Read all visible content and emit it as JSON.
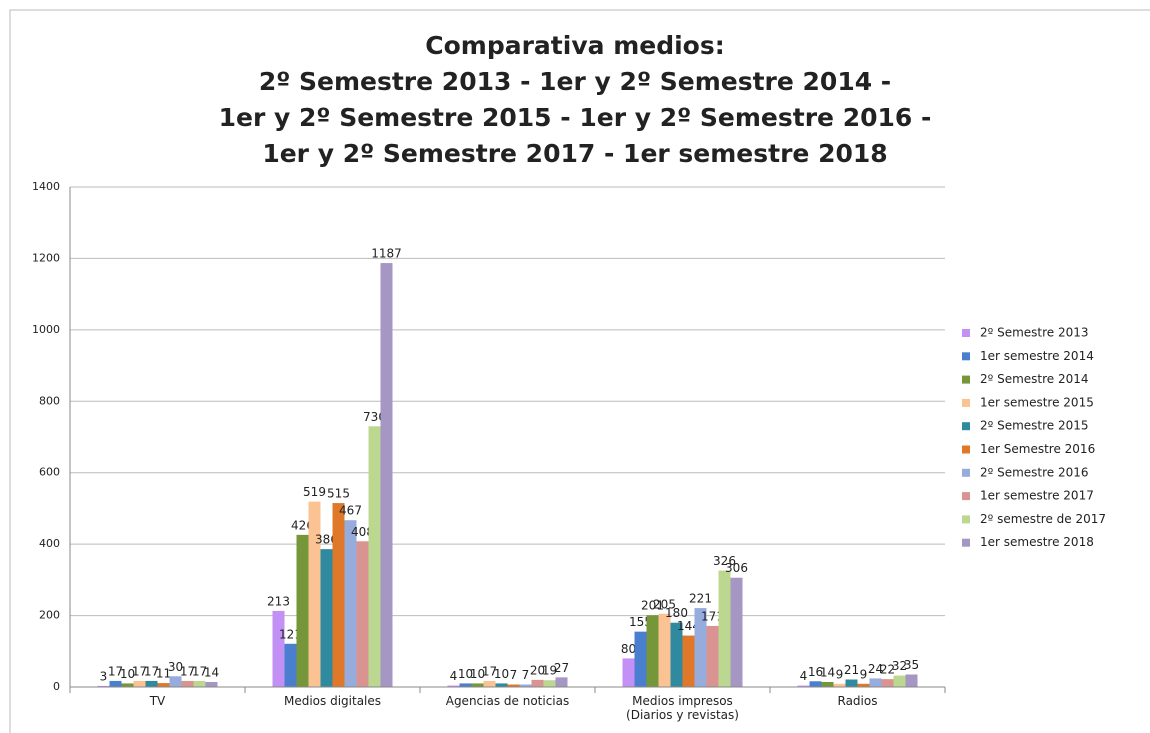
{
  "chart_data": {
    "type": "bar",
    "title": "Comparativa medios:\n2º Semestre 2013 - 1er y 2º Semestre 2014 -\n1er y 2º Semestre 2015 - 1er y 2º Semestre 2016 -\n1er y 2º Semestre 2017 - 1er semestre 2018",
    "categories": [
      "TV",
      "Medios digitales",
      "Agencias de noticias",
      "Medios impresos\n(Diarios y revistas)",
      "Radios"
    ],
    "series": [
      {
        "name": "2º  Semestre 2013",
        "color": "#c390f5",
        "values": [
          3,
          213,
          4,
          80,
          4
        ]
      },
      {
        "name": "1er semestre 2014",
        "color": "#4a7fd0",
        "values": [
          17,
          121,
          10,
          155,
          16
        ]
      },
      {
        "name": "2º Semestre 2014",
        "color": "#76963a",
        "values": [
          10,
          426,
          10,
          201,
          14
        ]
      },
      {
        "name": "1er semestre 2015",
        "color": "#fbc393",
        "values": [
          17,
          519,
          17,
          205,
          9
        ]
      },
      {
        "name": "2º Semestre 2015",
        "color": "#2f8aa0",
        "values": [
          17,
          386,
          10,
          180,
          21
        ]
      },
      {
        "name": "1er Semestre 2016",
        "color": "#e0782a",
        "values": [
          11,
          515,
          7,
          144,
          9
        ]
      },
      {
        "name": "2º Semestre 2016",
        "color": "#96acdc",
        "values": [
          30,
          467,
          7,
          221,
          24
        ]
      },
      {
        "name": "1er semestre 2017",
        "color": "#d99390",
        "values": [
          17,
          408,
          20,
          171,
          22
        ]
      },
      {
        "name": "2º semestre de 2017",
        "color": "#bcd890",
        "values": [
          17,
          730,
          19,
          326,
          32
        ]
      },
      {
        "name": "1er semestre 2018",
        "color": "#a596c4",
        "values": [
          14,
          1187,
          27,
          306,
          35
        ]
      }
    ],
    "ylim": [
      0,
      1400
    ],
    "yticks": [
      0,
      200,
      400,
      600,
      800,
      1000,
      1200,
      1400
    ],
    "grid": true,
    "legend": "right"
  }
}
